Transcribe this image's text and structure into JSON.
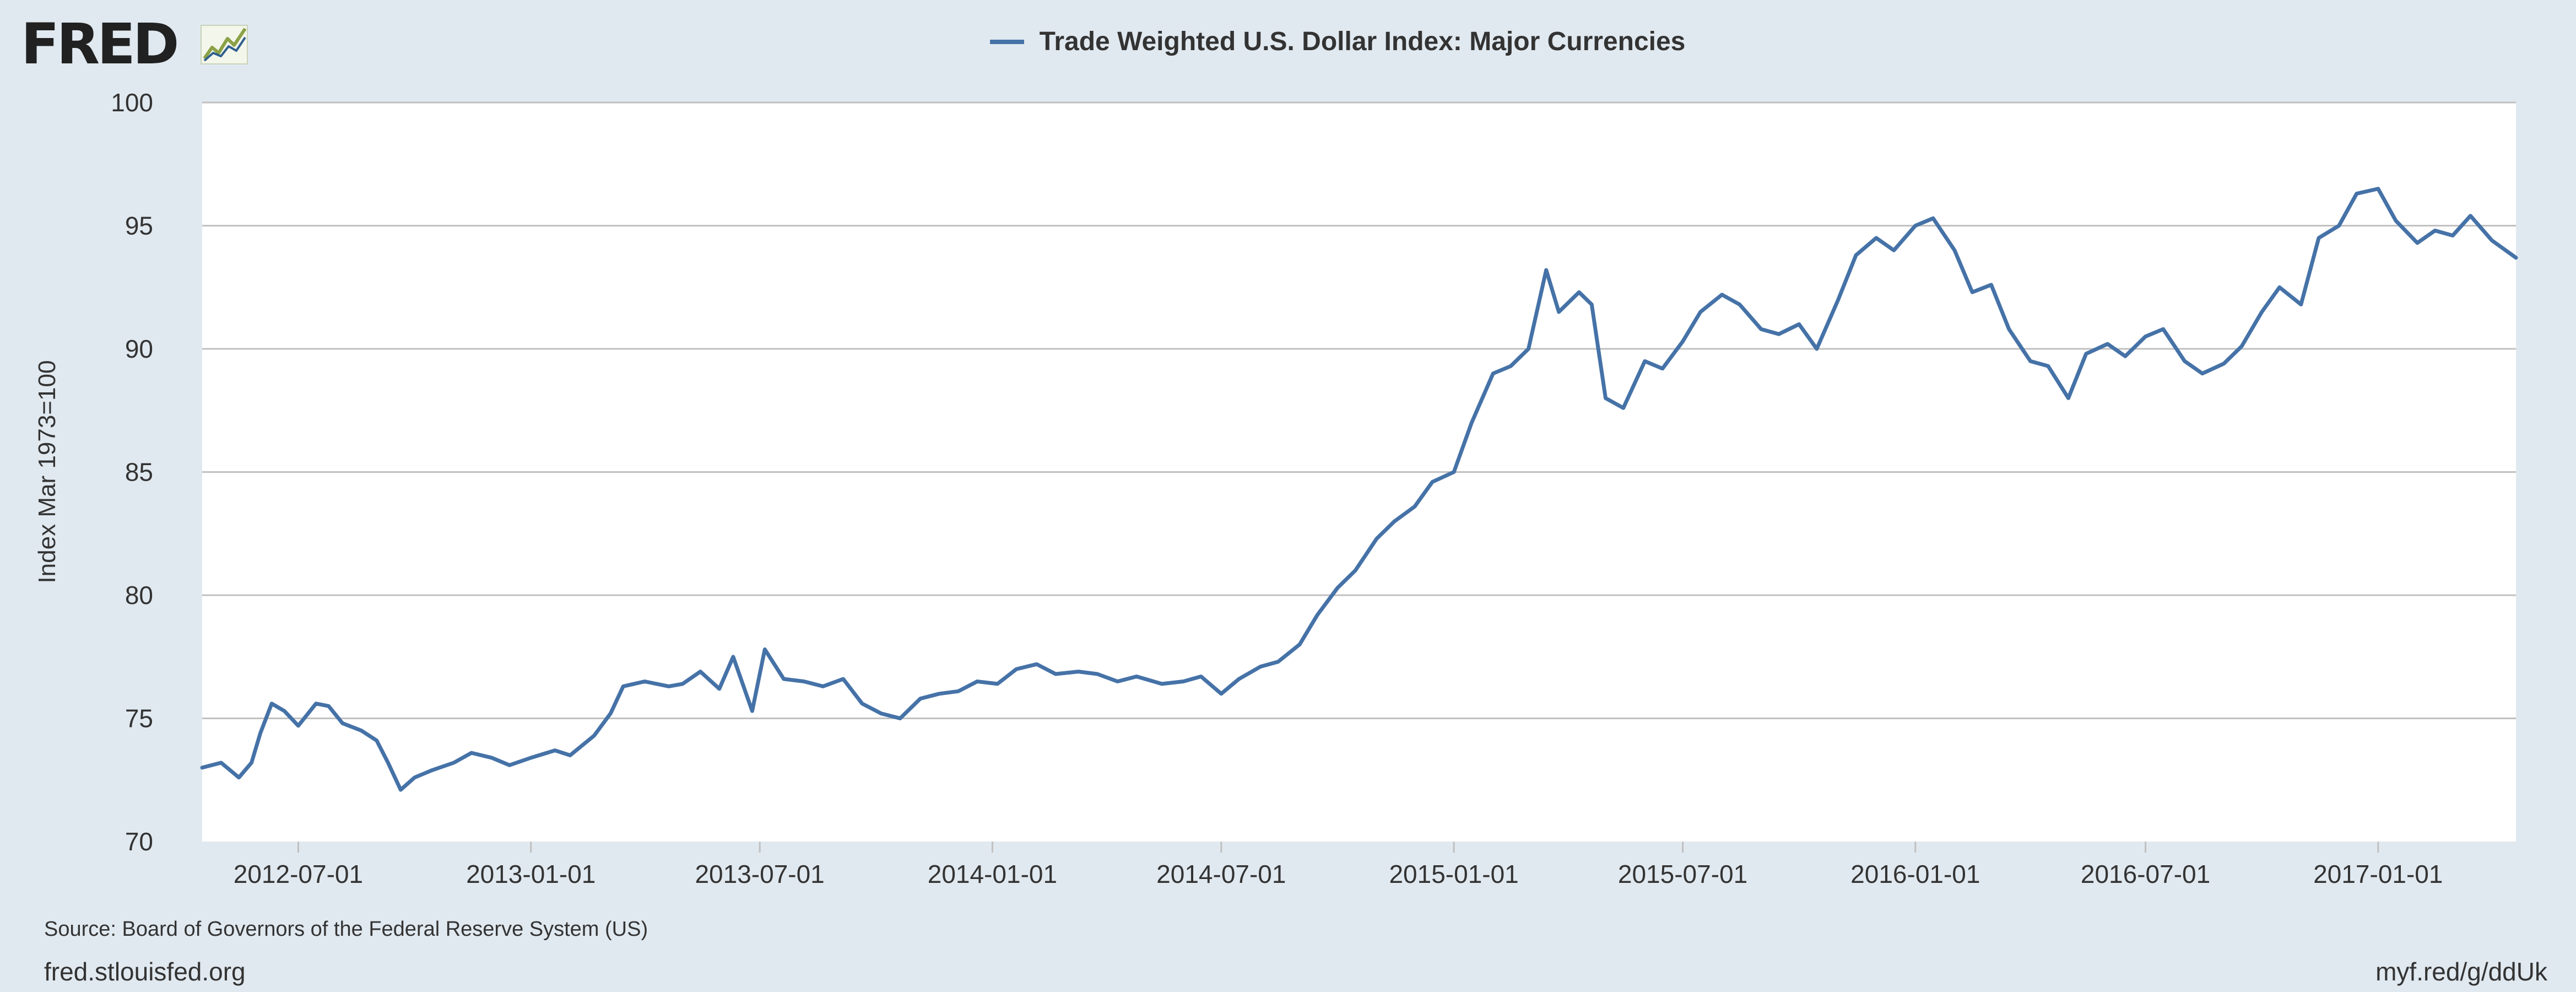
{
  "logo": {
    "text": "FRED",
    "icon": "line-chart-icon"
  },
  "source": "Source: Board of Governors of the Federal Reserve System (US)",
  "footer": {
    "site": "fred.stlouisfed.org",
    "short_url": "myf.red/g/ddUk"
  },
  "colors": {
    "background": "#e1e9f0",
    "plot_bg": "#ffffff",
    "series": "#4572a7",
    "grid": "#c0c0c0",
    "text": "#333333"
  },
  "chart_data": {
    "type": "line",
    "title": "",
    "xlabel": "",
    "ylabel": "Index Mar 1973=100",
    "ylim": [
      70,
      100
    ],
    "xlim": [
      "2012-04-16",
      "2017-04-20"
    ],
    "yticks": [
      70,
      75,
      80,
      85,
      90,
      95,
      100
    ],
    "xticks": [
      "2012-07-01",
      "2013-01-01",
      "2013-07-01",
      "2014-01-01",
      "2014-07-01",
      "2015-01-01",
      "2015-07-01",
      "2016-01-01",
      "2016-07-01",
      "2017-01-01"
    ],
    "grid": true,
    "legend_position": "top-center",
    "series": [
      {
        "name": "Trade Weighted U.S. Dollar Index: Major Currencies",
        "color": "#4572a7",
        "points": [
          [
            "2012-04-16",
            73.0
          ],
          [
            "2012-05-01",
            73.2
          ],
          [
            "2012-05-15",
            72.6
          ],
          [
            "2012-05-25",
            73.2
          ],
          [
            "2012-06-01",
            74.4
          ],
          [
            "2012-06-10",
            75.6
          ],
          [
            "2012-06-20",
            75.3
          ],
          [
            "2012-07-01",
            74.7
          ],
          [
            "2012-07-15",
            75.6
          ],
          [
            "2012-07-25",
            75.5
          ],
          [
            "2012-08-05",
            74.8
          ],
          [
            "2012-08-20",
            74.5
          ],
          [
            "2012-09-01",
            74.1
          ],
          [
            "2012-09-10",
            73.2
          ],
          [
            "2012-09-20",
            72.1
          ],
          [
            "2012-10-01",
            72.6
          ],
          [
            "2012-10-15",
            72.9
          ],
          [
            "2012-11-01",
            73.2
          ],
          [
            "2012-11-15",
            73.6
          ],
          [
            "2012-12-01",
            73.4
          ],
          [
            "2012-12-15",
            73.1
          ],
          [
            "2013-01-01",
            73.4
          ],
          [
            "2013-01-20",
            73.7
          ],
          [
            "2013-02-01",
            73.5
          ],
          [
            "2013-02-20",
            74.3
          ],
          [
            "2013-03-05",
            75.2
          ],
          [
            "2013-03-15",
            76.3
          ],
          [
            "2013-04-01",
            76.5
          ],
          [
            "2013-04-20",
            76.3
          ],
          [
            "2013-05-01",
            76.4
          ],
          [
            "2013-05-15",
            76.9
          ],
          [
            "2013-05-30",
            76.2
          ],
          [
            "2013-06-10",
            77.5
          ],
          [
            "2013-06-25",
            75.3
          ],
          [
            "2013-07-05",
            77.8
          ],
          [
            "2013-07-20",
            76.6
          ],
          [
            "2013-08-05",
            76.5
          ],
          [
            "2013-08-20",
            76.3
          ],
          [
            "2013-09-05",
            76.6
          ],
          [
            "2013-09-20",
            75.6
          ],
          [
            "2013-10-05",
            75.2
          ],
          [
            "2013-10-20",
            75.0
          ],
          [
            "2013-11-05",
            75.8
          ],
          [
            "2013-11-20",
            76.0
          ],
          [
            "2013-12-05",
            76.1
          ],
          [
            "2013-12-20",
            76.5
          ],
          [
            "2014-01-05",
            76.4
          ],
          [
            "2014-01-20",
            77.0
          ],
          [
            "2014-02-05",
            77.2
          ],
          [
            "2014-02-20",
            76.8
          ],
          [
            "2014-03-10",
            76.9
          ],
          [
            "2014-03-25",
            76.8
          ],
          [
            "2014-04-10",
            76.5
          ],
          [
            "2014-04-25",
            76.7
          ],
          [
            "2014-05-15",
            76.4
          ],
          [
            "2014-06-01",
            76.5
          ],
          [
            "2014-06-15",
            76.7
          ],
          [
            "2014-07-01",
            76.0
          ],
          [
            "2014-07-15",
            76.6
          ],
          [
            "2014-08-01",
            77.1
          ],
          [
            "2014-08-15",
            77.3
          ],
          [
            "2014-09-01",
            78.0
          ],
          [
            "2014-09-15",
            79.2
          ],
          [
            "2014-10-01",
            80.3
          ],
          [
            "2014-10-15",
            81.0
          ],
          [
            "2014-11-01",
            82.3
          ],
          [
            "2014-11-15",
            83.0
          ],
          [
            "2014-12-01",
            83.6
          ],
          [
            "2014-12-15",
            84.6
          ],
          [
            "2015-01-01",
            85.0
          ],
          [
            "2015-01-15",
            87.0
          ],
          [
            "2015-02-01",
            89.0
          ],
          [
            "2015-02-15",
            89.3
          ],
          [
            "2015-03-01",
            90.0
          ],
          [
            "2015-03-15",
            93.2
          ],
          [
            "2015-03-25",
            91.5
          ],
          [
            "2015-04-10",
            92.3
          ],
          [
            "2015-04-20",
            91.8
          ],
          [
            "2015-05-01",
            88.0
          ],
          [
            "2015-05-15",
            87.6
          ],
          [
            "2015-06-01",
            89.5
          ],
          [
            "2015-06-15",
            89.2
          ],
          [
            "2015-07-01",
            90.3
          ],
          [
            "2015-07-15",
            91.5
          ],
          [
            "2015-08-01",
            92.2
          ],
          [
            "2015-08-15",
            91.8
          ],
          [
            "2015-09-01",
            90.8
          ],
          [
            "2015-09-15",
            90.6
          ],
          [
            "2015-10-01",
            91.0
          ],
          [
            "2015-10-15",
            90.0
          ],
          [
            "2015-11-01",
            92.0
          ],
          [
            "2015-11-15",
            93.8
          ],
          [
            "2015-12-01",
            94.5
          ],
          [
            "2015-12-15",
            94.0
          ],
          [
            "2016-01-01",
            95.0
          ],
          [
            "2016-01-15",
            95.3
          ],
          [
            "2016-02-01",
            94.0
          ],
          [
            "2016-02-15",
            92.3
          ],
          [
            "2016-03-01",
            92.6
          ],
          [
            "2016-03-15",
            90.8
          ],
          [
            "2016-04-01",
            89.5
          ],
          [
            "2016-04-15",
            89.3
          ],
          [
            "2016-05-01",
            88.0
          ],
          [
            "2016-05-15",
            89.8
          ],
          [
            "2016-06-01",
            90.2
          ],
          [
            "2016-06-15",
            89.7
          ],
          [
            "2016-07-01",
            90.5
          ],
          [
            "2016-07-15",
            90.8
          ],
          [
            "2016-08-01",
            89.5
          ],
          [
            "2016-08-15",
            89.0
          ],
          [
            "2016-09-01",
            89.4
          ],
          [
            "2016-09-15",
            90.1
          ],
          [
            "2016-10-01",
            91.5
          ],
          [
            "2016-10-15",
            92.5
          ],
          [
            "2016-11-01",
            91.8
          ],
          [
            "2016-11-15",
            94.5
          ],
          [
            "2016-12-01",
            95.0
          ],
          [
            "2016-12-15",
            96.3
          ],
          [
            "2017-01-01",
            96.5
          ],
          [
            "2017-01-15",
            95.2
          ],
          [
            "2017-02-01",
            94.3
          ],
          [
            "2017-02-15",
            94.8
          ],
          [
            "2017-03-01",
            94.6
          ],
          [
            "2017-03-15",
            95.4
          ],
          [
            "2017-04-01",
            94.4
          ],
          [
            "2017-04-20",
            93.7
          ]
        ]
      }
    ]
  }
}
